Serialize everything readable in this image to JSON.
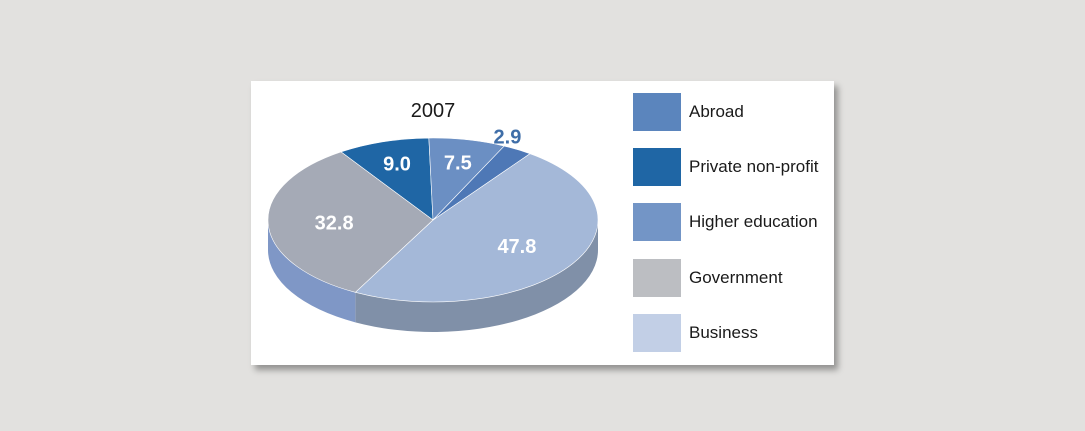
{
  "chart_data": {
    "type": "pie",
    "title": "2007",
    "slices": [
      {
        "name": "Business",
        "value": 47.8,
        "color": "#a4b8d8",
        "label_color": "#ffffff"
      },
      {
        "name": "Government",
        "value": 32.8,
        "color": "#a5aab6",
        "label_color": "#ffffff"
      },
      {
        "name": "Private non-profit",
        "value": 9.0,
        "color": "#1f66a5",
        "label_color": "#ffffff"
      },
      {
        "name": "Higher education",
        "value": 7.5,
        "color": "#6b8fc3",
        "label_color": "#ffffff"
      },
      {
        "name": "Abroad",
        "value": 2.9,
        "color": "#4e78b6",
        "label_color": "#3f6ea8"
      }
    ],
    "legend": {
      "placement": "right",
      "items": [
        {
          "label": "Abroad",
          "color": "#5b85bd"
        },
        {
          "label": "Private non-profit",
          "color": "#1f66a5"
        },
        {
          "label": "Higher education",
          "color": "#7395c6"
        },
        {
          "label": "Government",
          "color": "#bcbec2"
        },
        {
          "label": "Business",
          "color": "#c2cfe6"
        }
      ]
    }
  }
}
